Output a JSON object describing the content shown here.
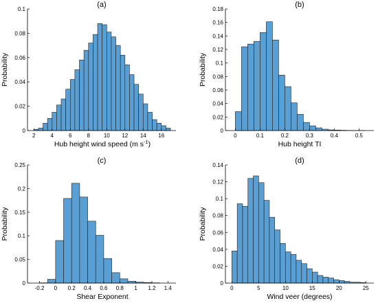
{
  "chart_data": [
    {
      "type": "bar",
      "title": "(a)",
      "xlabel": "Hub height wind speed (m s",
      "xlabel_sup": "-1",
      "xlabel_end": ")",
      "ylabel": "Probability",
      "xlim": [
        1.3,
        17.6
      ],
      "ylim": [
        0,
        0.1
      ],
      "bar_color": "#5a9fd4",
      "xticks": [
        2,
        4,
        6,
        8,
        10,
        12,
        14,
        16
      ],
      "xtick_labels": [
        "2",
        "4",
        "6",
        "8",
        "10",
        "12",
        "14",
        "16"
      ],
      "yticks": [
        0,
        0.02,
        0.04,
        0.06,
        0.08,
        0.1
      ],
      "ytick_labels": [
        "0",
        "0.02",
        "0.04",
        "0.06",
        "0.08",
        "0.1"
      ],
      "bin_edges": [
        2.0,
        2.5,
        3.0,
        3.5,
        4.0,
        4.5,
        5.0,
        5.5,
        6.0,
        6.5,
        7.0,
        7.5,
        8.0,
        8.5,
        9.0,
        9.5,
        10.0,
        10.5,
        11.0,
        11.5,
        12.0,
        12.5,
        13.0,
        13.5,
        14.0,
        14.5,
        15.0,
        15.5,
        16.0,
        16.5,
        17.0
      ],
      "values": [
        0.001,
        0.002,
        0.006,
        0.01,
        0.015,
        0.021,
        0.026,
        0.034,
        0.042,
        0.05,
        0.058,
        0.066,
        0.072,
        0.079,
        0.088,
        0.087,
        0.081,
        0.077,
        0.07,
        0.062,
        0.054,
        0.046,
        0.038,
        0.03,
        0.022,
        0.015,
        0.009,
        0.006,
        0.004,
        0.002
      ]
    },
    {
      "type": "bar",
      "title": "(b)",
      "xlabel": "Hub height TI",
      "ylabel": "Probability",
      "xlim": [
        -0.04,
        0.56
      ],
      "ylim": [
        0,
        0.18
      ],
      "bar_color": "#5a9fd4",
      "xticks": [
        0,
        0.1,
        0.2,
        0.3,
        0.4,
        0.5
      ],
      "xtick_labels": [
        "0",
        "0.1",
        "0.2",
        "0.3",
        "0.4",
        "0.5"
      ],
      "yticks": [
        0,
        0.02,
        0.04,
        0.06,
        0.08,
        0.1,
        0.12,
        0.14,
        0.16,
        0.18
      ],
      "ytick_labels": [
        "0",
        "0.02",
        "0.04",
        "0.06",
        "0.08",
        "0.1",
        "0.12",
        "0.14",
        "0.16",
        "0.18"
      ],
      "bin_edges": [
        0.0,
        0.025,
        0.05,
        0.075,
        0.1,
        0.125,
        0.15,
        0.175,
        0.2,
        0.225,
        0.25,
        0.275,
        0.3,
        0.325,
        0.35,
        0.375,
        0.4,
        0.425,
        0.45,
        0.475,
        0.5,
        0.525
      ],
      "values": [
        0.028,
        0.124,
        0.128,
        0.132,
        0.145,
        0.161,
        0.134,
        0.082,
        0.065,
        0.041,
        0.024,
        0.012,
        0.007,
        0.004,
        0.002,
        0.001,
        0.0007,
        0.0004,
        0.0002,
        0.0001,
        0.0001
      ]
    },
    {
      "type": "bar",
      "title": "(c)",
      "xlabel": "Shear Exponent",
      "ylabel": "Probability",
      "xlim": [
        -0.35,
        1.5
      ],
      "ylim": [
        0,
        0.25
      ],
      "bar_color": "#5a9fd4",
      "xticks": [
        -0.2,
        0,
        0.2,
        0.4,
        0.6,
        0.8,
        1,
        1.2,
        1.4
      ],
      "xtick_labels": [
        "-0.2",
        "0",
        "0.2",
        "0.4",
        "0.6",
        "0.8",
        "1",
        "1.2",
        "1.4"
      ],
      "yticks": [
        0,
        0.05,
        0.1,
        0.15,
        0.2,
        0.25
      ],
      "ytick_labels": [
        "0",
        "0.05",
        "0.1",
        "0.15",
        "0.2",
        "0.25"
      ],
      "bin_edges": [
        -0.2,
        -0.1,
        0.0,
        0.1,
        0.2,
        0.3,
        0.4,
        0.5,
        0.6,
        0.7,
        0.8,
        0.9,
        1.0,
        1.1,
        1.2,
        1.3
      ],
      "values": [
        0.0005,
        0.008,
        0.09,
        0.179,
        0.211,
        0.182,
        0.131,
        0.101,
        0.052,
        0.022,
        0.009,
        0.004,
        0.002,
        0.001,
        0.0005
      ]
    },
    {
      "type": "bar",
      "title": "(d)",
      "xlabel": "Wind veer (degrees)",
      "ylabel": "Probability",
      "xlim": [
        -1.2,
        26.5
      ],
      "ylim": [
        0,
        0.14
      ],
      "bar_color": "#5a9fd4",
      "xticks": [
        0,
        5,
        10,
        15,
        20,
        25
      ],
      "xtick_labels": [
        "0",
        "5",
        "10",
        "15",
        "20",
        "25"
      ],
      "yticks": [
        0,
        0.02,
        0.04,
        0.06,
        0.08,
        0.1,
        0.12,
        0.14
      ],
      "ytick_labels": [
        "0",
        "0.02",
        "0.04",
        "0.06",
        "0.08",
        "0.1",
        "0.12",
        "0.14"
      ],
      "bin_edges": [
        0,
        1,
        2,
        3,
        4,
        5,
        6,
        7,
        8,
        9,
        10,
        11,
        12,
        13,
        14,
        15,
        16,
        17,
        18,
        19,
        20,
        21,
        22,
        23,
        24,
        25
      ],
      "values": [
        0.038,
        0.094,
        0.091,
        0.124,
        0.127,
        0.119,
        0.098,
        0.078,
        0.063,
        0.047,
        0.037,
        0.034,
        0.027,
        0.023,
        0.017,
        0.013,
        0.009,
        0.007,
        0.006,
        0.004,
        0.003,
        0.002,
        0.001,
        0.001,
        0.0005
      ]
    }
  ]
}
